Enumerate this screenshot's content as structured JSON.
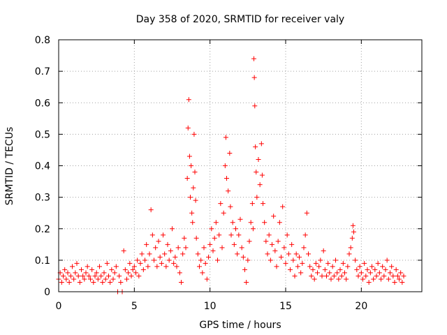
{
  "colors": {
    "series": "#ff0000",
    "axis": "#000000",
    "grid": "#a0a0a0",
    "background": "#ffffff"
  },
  "chart_data": {
    "type": "scatter",
    "title": "Day 358 of 2020, SRMTID for receiver valy",
    "xlabel": "GPS time / hours",
    "ylabel": "SRMTID / TECUs",
    "xlim": [
      0,
      24
    ],
    "ylim": [
      0,
      0.8
    ],
    "xticks": [
      0,
      5,
      10,
      15,
      20
    ],
    "yticks": [
      0,
      0.1,
      0.2,
      0.3,
      0.4,
      0.5,
      0.6,
      0.7,
      0.8
    ],
    "xtick_labels": [
      "0",
      "5",
      "10",
      "15",
      "20"
    ],
    "ytick_labels": [
      "0",
      "0.1",
      "0.2",
      "0.3",
      "0.4",
      "0.5",
      "0.6",
      "0.7",
      "0.8"
    ],
    "grid": true,
    "marker": "+",
    "series": [
      {
        "name": "SRMTID",
        "points": [
          [
            0.0,
            0.04
          ],
          [
            0.1,
            0.06
          ],
          [
            0.2,
            0.03
          ],
          [
            0.3,
            0.05
          ],
          [
            0.4,
            0.07
          ],
          [
            0.5,
            0.04
          ],
          [
            0.6,
            0.06
          ],
          [
            0.7,
            0.03
          ],
          [
            0.8,
            0.05
          ],
          [
            0.9,
            0.08
          ],
          [
            1.0,
            0.04
          ],
          [
            1.1,
            0.06
          ],
          [
            1.2,
            0.09
          ],
          [
            1.3,
            0.05
          ],
          [
            1.4,
            0.03
          ],
          [
            1.5,
            0.07
          ],
          [
            1.6,
            0.05
          ],
          [
            1.7,
            0.04
          ],
          [
            1.8,
            0.06
          ],
          [
            1.9,
            0.08
          ],
          [
            2.0,
            0.05
          ],
          [
            2.1,
            0.04
          ],
          [
            2.2,
            0.07
          ],
          [
            2.3,
            0.03
          ],
          [
            2.4,
            0.05
          ],
          [
            2.5,
            0.06
          ],
          [
            2.6,
            0.04
          ],
          [
            2.7,
            0.08
          ],
          [
            2.8,
            0.05
          ],
          [
            2.9,
            0.03
          ],
          [
            3.0,
            0.06
          ],
          [
            3.1,
            0.04
          ],
          [
            3.2,
            0.09
          ],
          [
            3.3,
            0.05
          ],
          [
            3.4,
            0.03
          ],
          [
            3.5,
            0.07
          ],
          [
            3.6,
            0.04
          ],
          [
            3.7,
            0.06
          ],
          [
            3.8,
            0.08
          ],
          [
            3.9,
            0.0
          ],
          [
            4.0,
            0.05
          ],
          [
            4.1,
            0.03
          ],
          [
            4.2,
            0.0
          ],
          [
            4.3,
            0.13
          ],
          [
            4.4,
            0.07
          ],
          [
            4.5,
            0.04
          ],
          [
            4.6,
            0.06
          ],
          [
            4.7,
            0.09
          ],
          [
            4.8,
            0.05
          ],
          [
            4.9,
            0.07
          ],
          [
            5.0,
            0.08
          ],
          [
            5.1,
            0.06
          ],
          [
            5.2,
            0.1
          ],
          [
            5.3,
            0.05
          ],
          [
            5.4,
            0.09
          ],
          [
            5.5,
            0.12
          ],
          [
            5.6,
            0.07
          ],
          [
            5.7,
            0.1
          ],
          [
            5.8,
            0.15
          ],
          [
            5.9,
            0.08
          ],
          [
            6.0,
            0.12
          ],
          [
            6.1,
            0.26
          ],
          [
            6.2,
            0.18
          ],
          [
            6.3,
            0.1
          ],
          [
            6.4,
            0.14
          ],
          [
            6.5,
            0.08
          ],
          [
            6.6,
            0.16
          ],
          [
            6.7,
            0.11
          ],
          [
            6.8,
            0.09
          ],
          [
            6.9,
            0.18
          ],
          [
            7.0,
            0.12
          ],
          [
            7.1,
            0.08
          ],
          [
            7.2,
            0.15
          ],
          [
            7.3,
            0.1
          ],
          [
            7.4,
            0.13
          ],
          [
            7.5,
            0.2
          ],
          [
            7.6,
            0.09
          ],
          [
            7.7,
            0.11
          ],
          [
            7.8,
            0.08
          ],
          [
            7.9,
            0.14
          ],
          [
            8.0,
            0.06
          ],
          [
            8.1,
            0.03
          ],
          [
            8.2,
            0.12
          ],
          [
            8.3,
            0.17
          ],
          [
            8.4,
            0.14
          ],
          [
            8.5,
            0.36
          ],
          [
            8.55,
            0.52
          ],
          [
            8.6,
            0.61
          ],
          [
            8.65,
            0.43
          ],
          [
            8.7,
            0.3
          ],
          [
            8.75,
            0.4
          ],
          [
            8.8,
            0.25
          ],
          [
            8.85,
            0.22
          ],
          [
            8.9,
            0.33
          ],
          [
            8.95,
            0.5
          ],
          [
            9.0,
            0.38
          ],
          [
            9.05,
            0.29
          ],
          [
            9.1,
            0.17
          ],
          [
            9.2,
            0.12
          ],
          [
            9.3,
            0.08
          ],
          [
            9.4,
            0.1
          ],
          [
            9.5,
            0.06
          ],
          [
            9.6,
            0.14
          ],
          [
            9.7,
            0.09
          ],
          [
            9.8,
            0.04
          ],
          [
            9.9,
            0.11
          ],
          [
            10.0,
            0.15
          ],
          [
            10.1,
            0.2
          ],
          [
            10.2,
            0.13
          ],
          [
            10.3,
            0.17
          ],
          [
            10.4,
            0.22
          ],
          [
            10.5,
            0.1
          ],
          [
            10.6,
            0.18
          ],
          [
            10.7,
            0.28
          ],
          [
            10.8,
            0.14
          ],
          [
            10.9,
            0.25
          ],
          [
            11.0,
            0.4
          ],
          [
            11.05,
            0.49
          ],
          [
            11.1,
            0.36
          ],
          [
            11.2,
            0.32
          ],
          [
            11.3,
            0.44
          ],
          [
            11.35,
            0.27
          ],
          [
            11.4,
            0.18
          ],
          [
            11.5,
            0.22
          ],
          [
            11.6,
            0.15
          ],
          [
            11.7,
            0.2
          ],
          [
            11.8,
            0.12
          ],
          [
            11.9,
            0.18
          ],
          [
            12.0,
            0.23
          ],
          [
            12.1,
            0.14
          ],
          [
            12.2,
            0.11
          ],
          [
            12.3,
            0.07
          ],
          [
            12.4,
            0.03
          ],
          [
            12.5,
            0.1
          ],
          [
            12.6,
            0.16
          ],
          [
            12.7,
            0.22
          ],
          [
            12.8,
            0.28
          ],
          [
            12.85,
            0.2
          ],
          [
            12.9,
            0.74
          ],
          [
            12.93,
            0.68
          ],
          [
            12.96,
            0.59
          ],
          [
            13.0,
            0.46
          ],
          [
            13.05,
            0.38
          ],
          [
            13.1,
            0.3
          ],
          [
            13.2,
            0.42
          ],
          [
            13.3,
            0.34
          ],
          [
            13.4,
            0.47
          ],
          [
            13.45,
            0.37
          ],
          [
            13.5,
            0.28
          ],
          [
            13.6,
            0.22
          ],
          [
            13.7,
            0.16
          ],
          [
            13.8,
            0.12
          ],
          [
            13.9,
            0.18
          ],
          [
            14.0,
            0.1
          ],
          [
            14.1,
            0.15
          ],
          [
            14.2,
            0.24
          ],
          [
            14.3,
            0.13
          ],
          [
            14.4,
            0.08
          ],
          [
            14.5,
            0.16
          ],
          [
            14.6,
            0.22
          ],
          [
            14.7,
            0.11
          ],
          [
            14.8,
            0.27
          ],
          [
            14.9,
            0.14
          ],
          [
            15.0,
            0.09
          ],
          [
            15.1,
            0.18
          ],
          [
            15.2,
            0.12
          ],
          [
            15.3,
            0.07
          ],
          [
            15.4,
            0.15
          ],
          [
            15.5,
            0.1
          ],
          [
            15.6,
            0.05
          ],
          [
            15.7,
            0.12
          ],
          [
            15.8,
            0.08
          ],
          [
            15.9,
            0.11
          ],
          [
            16.0,
            0.06
          ],
          [
            16.1,
            0.09
          ],
          [
            16.2,
            0.14
          ],
          [
            16.3,
            0.18
          ],
          [
            16.4,
            0.25
          ],
          [
            16.5,
            0.12
          ],
          [
            16.6,
            0.08
          ],
          [
            16.7,
            0.05
          ],
          [
            16.8,
            0.07
          ],
          [
            16.9,
            0.04
          ],
          [
            17.0,
            0.09
          ],
          [
            17.1,
            0.06
          ],
          [
            17.2,
            0.08
          ],
          [
            17.3,
            0.1
          ],
          [
            17.4,
            0.05
          ],
          [
            17.5,
            0.13
          ],
          [
            17.6,
            0.07
          ],
          [
            17.7,
            0.05
          ],
          [
            17.8,
            0.09
          ],
          [
            17.9,
            0.06
          ],
          [
            18.0,
            0.04
          ],
          [
            18.1,
            0.08
          ],
          [
            18.2,
            0.05
          ],
          [
            18.3,
            0.1
          ],
          [
            18.4,
            0.06
          ],
          [
            18.5,
            0.04
          ],
          [
            18.6,
            0.07
          ],
          [
            18.7,
            0.05
          ],
          [
            18.8,
            0.09
          ],
          [
            18.9,
            0.06
          ],
          [
            19.0,
            0.04
          ],
          [
            19.1,
            0.08
          ],
          [
            19.2,
            0.12
          ],
          [
            19.3,
            0.14
          ],
          [
            19.4,
            0.17
          ],
          [
            19.45,
            0.21
          ],
          [
            19.5,
            0.19
          ],
          [
            19.6,
            0.1
          ],
          [
            19.7,
            0.07
          ],
          [
            19.8,
            0.05
          ],
          [
            19.9,
            0.08
          ],
          [
            20.0,
            0.06
          ],
          [
            20.1,
            0.04
          ],
          [
            20.2,
            0.09
          ],
          [
            20.3,
            0.05
          ],
          [
            20.4,
            0.07
          ],
          [
            20.5,
            0.03
          ],
          [
            20.6,
            0.06
          ],
          [
            20.7,
            0.08
          ],
          [
            20.8,
            0.04
          ],
          [
            20.9,
            0.07
          ],
          [
            21.0,
            0.05
          ],
          [
            21.1,
            0.09
          ],
          [
            21.2,
            0.06
          ],
          [
            21.3,
            0.04
          ],
          [
            21.4,
            0.08
          ],
          [
            21.5,
            0.05
          ],
          [
            21.6,
            0.07
          ],
          [
            21.7,
            0.1
          ],
          [
            21.8,
            0.04
          ],
          [
            21.9,
            0.06
          ],
          [
            22.0,
            0.08
          ],
          [
            22.1,
            0.05
          ],
          [
            22.2,
            0.03
          ],
          [
            22.3,
            0.07
          ],
          [
            22.4,
            0.05
          ],
          [
            22.5,
            0.04
          ],
          [
            22.6,
            0.06
          ],
          [
            22.7,
            0.03
          ],
          [
            22.8,
            0.05
          ]
        ]
      }
    ]
  }
}
